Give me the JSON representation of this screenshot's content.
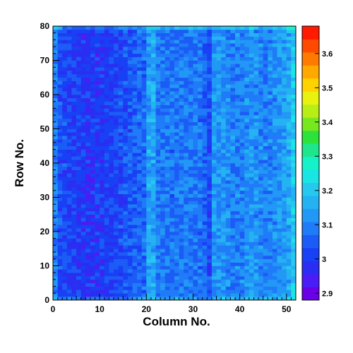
{
  "chart_data": {
    "type": "heatmap",
    "xlabel": "Column No.",
    "ylabel": "Row No.",
    "xlim": [
      0,
      52
    ],
    "ylim": [
      0,
      80
    ],
    "x_bins": 52,
    "y_bins": 80,
    "x_ticks": [
      "0",
      "10",
      "20",
      "30",
      "40",
      "50"
    ],
    "y_ticks": [
      "0",
      "10",
      "20",
      "30",
      "40",
      "50",
      "60",
      "70",
      "80"
    ],
    "colorbar": {
      "range": [
        2.88,
        3.68
      ],
      "tick_values": [
        2.9,
        3.0,
        3.1,
        3.2,
        3.3,
        3.4,
        3.5,
        3.6
      ],
      "tick_labels": [
        "2.9",
        "3",
        "3.1",
        "3.2",
        "3.3",
        "3.4",
        "3.5",
        "3.6"
      ]
    },
    "column_mean_profile": {
      "columns": [
        0,
        1,
        4,
        7,
        10,
        13,
        16,
        19,
        20,
        21,
        22,
        25,
        28,
        31,
        32,
        33,
        34,
        36,
        38,
        40,
        42,
        45,
        48,
        50,
        51
      ],
      "values": [
        3.1,
        3.03,
        3.01,
        2.99,
        3.0,
        3.02,
        3.04,
        3.07,
        3.14,
        3.15,
        3.09,
        3.08,
        3.09,
        3.08,
        3.06,
        3.03,
        3.12,
        3.12,
        3.1,
        3.1,
        3.12,
        3.1,
        3.12,
        3.15,
        3.2
      ]
    },
    "grid": false,
    "legend": "none"
  }
}
